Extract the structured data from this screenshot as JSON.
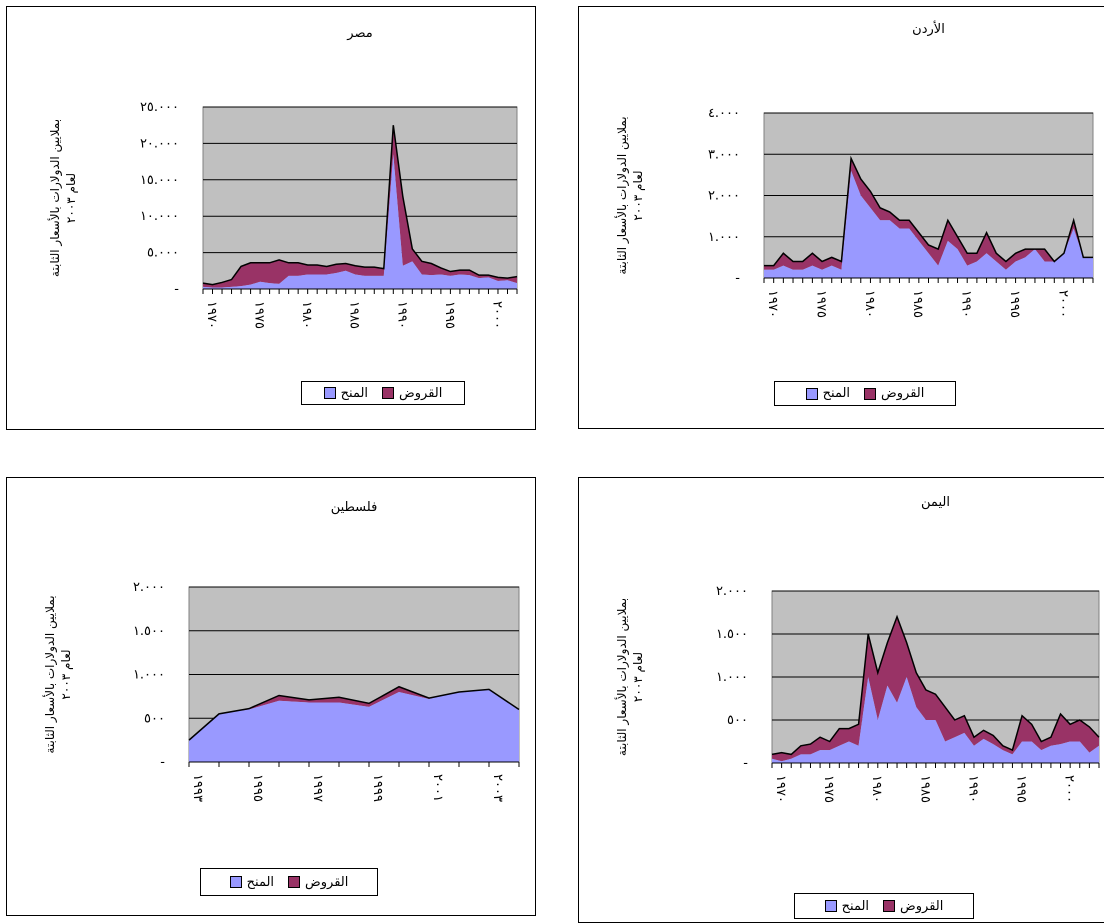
{
  "colors": {
    "plot_bg": "#c0c0c0",
    "grants": "#9999ff",
    "loans": "#993366",
    "line": "#000000"
  },
  "chart_data": [
    {
      "id": "egypt",
      "type": "area",
      "stacked": true,
      "title": "مصر",
      "ylabel": "بملايين الدولارات بالأسعار الثابتة لعام ٢٠٠٣",
      "ylim": [
        0,
        25000
      ],
      "yticks": [
        "-",
        "٥.٠٠٠",
        "١٠.٠٠٠",
        "١٥.٠٠٠",
        "٢٠.٠٠٠",
        "٢٥.٠٠٠"
      ],
      "x": [
        1970,
        1971,
        1972,
        1973,
        1974,
        1975,
        1976,
        1977,
        1978,
        1979,
        1980,
        1981,
        1982,
        1983,
        1984,
        1985,
        1986,
        1987,
        1988,
        1989,
        1990,
        1991,
        1992,
        1993,
        1994,
        1995,
        1996,
        1997,
        1998,
        1999,
        2000,
        2001,
        2002,
        2003
      ],
      "xticks": [
        "١٩٧٠",
        "١٩٧٥",
        "١٩٨٠",
        "١٩٨٥",
        "١٩٩٠",
        "١٩٩٥",
        "٢٠٠٠"
      ],
      "series": [
        {
          "name": "المنح",
          "values": [
            300,
            200,
            200,
            300,
            400,
            600,
            1000,
            800,
            700,
            1800,
            1800,
            2000,
            2000,
            2000,
            2200,
            2500,
            2000,
            1800,
            1800,
            1800,
            18500,
            3200,
            3800,
            2000,
            1900,
            2000,
            1800,
            2000,
            1900,
            1500,
            1600,
            1100,
            1200,
            800
          ]
        },
        {
          "name": "القروض",
          "values": [
            500,
            400,
            700,
            1000,
            2700,
            3000,
            2600,
            2800,
            3300,
            1800,
            1800,
            1300,
            1300,
            1100,
            1200,
            1000,
            1200,
            1200,
            1200,
            1000,
            4000,
            9500,
            1700,
            1800,
            1600,
            900,
            600,
            600,
            700,
            400,
            300,
            500,
            300,
            900
          ]
        }
      ],
      "legend": [
        "القروض",
        "المنح"
      ]
    },
    {
      "id": "jordan",
      "type": "area",
      "stacked": true,
      "title": "الأردن",
      "ylabel": "بملايين الدولارات بالأسعار الثابتة لعام ٢٠٠٣",
      "ylim": [
        0,
        4000
      ],
      "yticks": [
        "-",
        "١.٠٠٠",
        "٢.٠٠٠",
        "٣.٠٠٠",
        "٤.٠٠٠"
      ],
      "x": [
        1970,
        1971,
        1972,
        1973,
        1974,
        1975,
        1976,
        1977,
        1978,
        1979,
        1980,
        1981,
        1982,
        1983,
        1984,
        1985,
        1986,
        1987,
        1988,
        1989,
        1990,
        1991,
        1992,
        1993,
        1994,
        1995,
        1996,
        1997,
        1998,
        1999,
        2000,
        2001,
        2002,
        2003,
        2004
      ],
      "xticks": [
        "١٩٧٠",
        "١٩٧٥",
        "١٩٨٠",
        "١٩٨٥",
        "١٩٩٠",
        "١٩٩٥",
        "٢٠٠٠"
      ],
      "series": [
        {
          "name": "المنح",
          "values": [
            200,
            200,
            300,
            200,
            200,
            300,
            200,
            300,
            200,
            2600,
            2000,
            1700,
            1400,
            1400,
            1200,
            1200,
            900,
            600,
            300,
            900,
            700,
            300,
            400,
            600,
            400,
            200,
            400,
            500,
            700,
            400,
            400,
            600,
            1200,
            500,
            500
          ]
        },
        {
          "name": "القروض",
          "values": [
            100,
            100,
            300,
            200,
            200,
            300,
            200,
            200,
            200,
            300,
            400,
            400,
            300,
            200,
            200,
            200,
            200,
            200,
            400,
            500,
            300,
            300,
            200,
            500,
            200,
            200,
            200,
            200,
            0,
            300,
            0,
            0,
            200,
            0,
            0
          ]
        }
      ],
      "legend": [
        "القروض",
        "المنح"
      ]
    },
    {
      "id": "palestine",
      "type": "area",
      "stacked": true,
      "title": "فلسطين",
      "ylabel": "بملايين الدولارات بالأسعار الثابتة لعام ٢٠٠٣",
      "ylim": [
        0,
        2000
      ],
      "yticks": [
        "-",
        "٥٠٠",
        "١.٠٠٠",
        "١.٥٠٠",
        "٢.٠٠٠"
      ],
      "x": [
        1993,
        1994,
        1995,
        1996,
        1997,
        1998,
        1999,
        2000,
        2001,
        2002,
        2003,
        2004
      ],
      "xticks": [
        "١٩٩٣",
        "١٩٩٥",
        "١٩٩٧",
        "١٩٩٩",
        "٢٠٠١",
        "٢٠٠٣"
      ],
      "series": [
        {
          "name": "المنح",
          "values": [
            250,
            550,
            600,
            700,
            680,
            680,
            630,
            800,
            720,
            800,
            830,
            600
          ]
        },
        {
          "name": "القروض",
          "values": [
            0,
            0,
            10,
            60,
            30,
            60,
            40,
            60,
            10,
            0,
            0,
            0
          ]
        }
      ],
      "legend": [
        "القروض",
        "المنح"
      ]
    },
    {
      "id": "yemen",
      "type": "area",
      "stacked": true,
      "title": "اليمن",
      "ylabel": "بملايين الدولارات بالأسعار الثابتة لعام ٢٠٠٣",
      "ylim": [
        0,
        2000
      ],
      "yticks": [
        "-",
        "٥٠٠",
        "١.٠٠٠",
        "١.٥٠٠",
        "٢.٠٠٠"
      ],
      "x": [
        1970,
        1971,
        1972,
        1973,
        1974,
        1975,
        1976,
        1977,
        1978,
        1979,
        1980,
        1981,
        1982,
        1983,
        1984,
        1985,
        1986,
        1987,
        1988,
        1989,
        1990,
        1991,
        1992,
        1993,
        1994,
        1995,
        1996,
        1997,
        1998,
        1999,
        2000,
        2001,
        2002,
        2003,
        2004
      ],
      "xticks": [
        "١٩٧٠",
        "١٩٧٥",
        "١٩٨٠",
        "١٩٨٥",
        "١٩٩٠",
        "١٩٩٥",
        "٢٠٠٠"
      ],
      "series": [
        {
          "name": "المنح",
          "values": [
            50,
            20,
            50,
            100,
            100,
            150,
            150,
            200,
            250,
            200,
            1000,
            500,
            900,
            700,
            1000,
            650,
            500,
            500,
            250,
            300,
            350,
            200,
            280,
            220,
            150,
            100,
            250,
            250,
            150,
            200,
            220,
            250,
            250,
            120,
            200
          ]
        },
        {
          "name": "القروض",
          "values": [
            50,
            100,
            50,
            100,
            120,
            150,
            100,
            200,
            150,
            250,
            500,
            550,
            500,
            1000,
            400,
            400,
            350,
            300,
            400,
            200,
            200,
            100,
            100,
            100,
            50,
            50,
            300,
            200,
            100,
            100,
            350,
            200,
            250,
            300,
            100
          ]
        }
      ],
      "legend": [
        "القروض",
        "المنح"
      ]
    }
  ]
}
